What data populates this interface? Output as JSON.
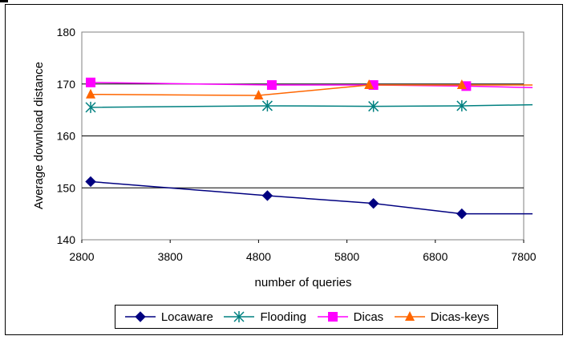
{
  "chart_data": {
    "type": "line",
    "title": "",
    "xlabel": "number of queries",
    "ylabel": "Average download distance",
    "xlim": [
      2800,
      7800
    ],
    "ylim": [
      140,
      180
    ],
    "xticks": [
      2800,
      3800,
      4800,
      5800,
      6800,
      7800
    ],
    "yticks": [
      140,
      150,
      160,
      170,
      180
    ],
    "grid": "horizontal",
    "legend_position": "bottom",
    "series": [
      {
        "name": "Locaware",
        "color": "#000080",
        "marker": "diamond",
        "points": [
          [
            2900,
            151.2
          ],
          [
            4900,
            148.5
          ],
          [
            6100,
            147.0
          ],
          [
            7100,
            145.0
          ],
          [
            7900,
            145.0
          ]
        ]
      },
      {
        "name": "Flooding",
        "color": "#008080",
        "marker": "asterisk",
        "points": [
          [
            2900,
            165.5
          ],
          [
            4900,
            165.8
          ],
          [
            6100,
            165.7
          ],
          [
            7100,
            165.8
          ],
          [
            7900,
            166.0
          ]
        ]
      },
      {
        "name": "Dicas",
        "color": "#ff00ff",
        "marker": "square",
        "points": [
          [
            2900,
            170.3
          ],
          [
            4950,
            169.8
          ],
          [
            6100,
            169.8
          ],
          [
            7150,
            169.6
          ],
          [
            7900,
            169.3
          ]
        ]
      },
      {
        "name": "Dicas-keys",
        "color": "#ff6600",
        "marker": "triangle",
        "points": [
          [
            2900,
            168.0
          ],
          [
            4800,
            167.8
          ],
          [
            6050,
            169.8
          ],
          [
            7100,
            169.8
          ],
          [
            7900,
            169.8
          ]
        ]
      }
    ]
  }
}
